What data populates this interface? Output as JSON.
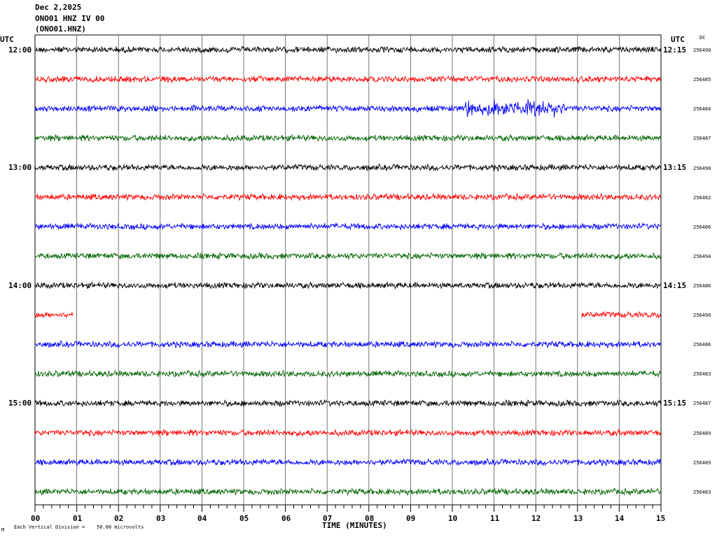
{
  "header": {
    "date": "Dec 2,2025",
    "station": "ONO01 HNZ IV 00",
    "channel": "(ONO01.HNZ)"
  },
  "utc_left_label": "UTC",
  "utc_right_label": "UTC",
  "dc_header": "DC",
  "footer": {
    "scale_text": "Each Vertical Division =    50.00 microvolts",
    "mark": "M"
  },
  "chart_data": {
    "type": "line",
    "title": "",
    "xlabel": "TIME (MINUTES)",
    "ylabel": "",
    "x_ticks": [
      "00",
      "01",
      "02",
      "03",
      "04",
      "05",
      "06",
      "07",
      "08",
      "09",
      "10",
      "11",
      "12",
      "13",
      "14",
      "15"
    ],
    "xlim": [
      0,
      15
    ],
    "grid": "vertical lines every minute",
    "trace_colors": [
      "#000000",
      "#ff0000",
      "#0000ff",
      "#006400"
    ],
    "left_hour_labels": [
      "12:00",
      "13:00",
      "14:00",
      "15:00"
    ],
    "right_hour_labels": [
      "12:15",
      "13:15",
      "14:15",
      "15:15"
    ],
    "traces": [
      {
        "row": 1,
        "dc": "256490",
        "color": "#000000"
      },
      {
        "row": 2,
        "dc": "256485",
        "color": "#ff0000"
      },
      {
        "row": 3,
        "dc": "256484",
        "color": "#0000ff",
        "event_window_minutes": [
          10.3,
          12.7
        ]
      },
      {
        "row": 4,
        "dc": "256487",
        "color": "#006400"
      },
      {
        "row": 5,
        "dc": "256490",
        "color": "#000000"
      },
      {
        "row": 6,
        "dc": "256482",
        "color": "#ff0000"
      },
      {
        "row": 7,
        "dc": "256486",
        "color": "#0000ff"
      },
      {
        "row": 8,
        "dc": "256494",
        "color": "#006400"
      },
      {
        "row": 9,
        "dc": "256486",
        "color": "#000000"
      },
      {
        "row": 10,
        "dc": "256490",
        "color": "#ff0000",
        "data_segments_minutes": [
          [
            0,
            0.92
          ],
          [
            13.1,
            15
          ]
        ]
      },
      {
        "row": 11,
        "dc": "256486",
        "color": "#0000ff"
      },
      {
        "row": 12,
        "dc": "256483",
        "color": "#006400"
      },
      {
        "row": 13,
        "dc": "256487",
        "color": "#000000"
      },
      {
        "row": 14,
        "dc": "256489",
        "color": "#ff0000"
      },
      {
        "row": 15,
        "dc": "256489",
        "color": "#0000ff"
      },
      {
        "row": 16,
        "dc": "256483",
        "color": "#006400"
      }
    ]
  }
}
